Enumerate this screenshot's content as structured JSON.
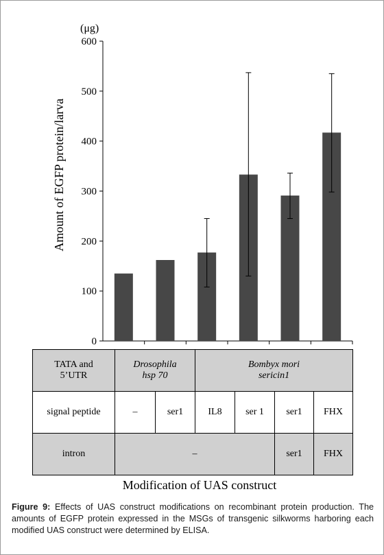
{
  "chart_data": {
    "type": "bar",
    "unit_label": "(μg)",
    "ylabel": "Amount of EGFP protein/larva",
    "xlabel": "Modification of UAS construct",
    "ylim": [
      0,
      600
    ],
    "yticks": [
      0,
      100,
      200,
      300,
      400,
      500,
      600
    ],
    "values": [
      135,
      162,
      177,
      333,
      291,
      417
    ],
    "error_upper": [
      null,
      null,
      245,
      537,
      336,
      535
    ],
    "error_lower": [
      null,
      null,
      108,
      130,
      245,
      298
    ],
    "bar_color": "#474747"
  },
  "table": {
    "row_tata": {
      "label_line1": "TATA and",
      "label_line2": "5’UTR",
      "drosophila_line1": "Drosophila",
      "drosophila_line2": "hsp 70",
      "bombyx_line1": "Bombyx mori",
      "bombyx_line2": "sericin1"
    },
    "row_signal": {
      "label": "signal peptide",
      "cells": [
        "–",
        "ser1",
        "IL8",
        "ser 1",
        "ser1",
        "FHX"
      ]
    },
    "row_intron": {
      "label": "intron",
      "merged": "–",
      "cells": [
        "ser1",
        "FHX"
      ]
    }
  },
  "caption": {
    "label": "Figure 9:",
    "text": " Effects of UAS construct modifications on recombinant protein production. The amounts of EGFP protein expressed in the MSGs of transgenic silkworms harboring each modified UAS construct were determined by ELISA."
  }
}
